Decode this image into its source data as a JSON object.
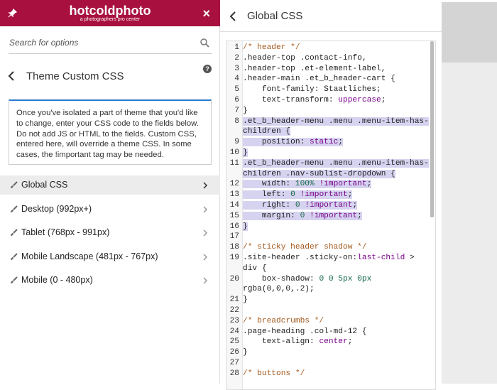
{
  "header": {
    "logo": "hotcoldphoto",
    "tagline": "a photographers pro center",
    "close": "×"
  },
  "search": {
    "placeholder": "Search for options"
  },
  "section": {
    "title": "Theme Custom CSS",
    "help": "?"
  },
  "description": "Once you've isolated a part of theme that you'd like to change, enter your CSS code to the fields below. Do not add JS or HTML to the fields. Custom CSS, entered here, will override a theme CSS. In some cases, the !important tag may be needed.",
  "menu": [
    {
      "label": "Global CSS",
      "active": true
    },
    {
      "label": "Desktop (992px+)",
      "active": false
    },
    {
      "label": "Tablet (768px - 991px)",
      "active": false
    },
    {
      "label": "Mobile Landscape (481px - 767px)",
      "active": false
    },
    {
      "label": "Mobile (0 - 480px)",
      "active": false
    }
  ],
  "editor": {
    "title": "Global CSS",
    "comment_color": "#a55a1e",
    "keyword_color": "#770088",
    "number_color": "#116644",
    "text_color": "#222222",
    "selection_color": "#d6d3f0",
    "lines": [
      {
        "n": 1,
        "selected": false,
        "tokens": [
          {
            "t": "/* header */",
            "k": "comment"
          }
        ]
      },
      {
        "n": 2,
        "selected": false,
        "tokens": [
          {
            "t": ".header-top .contact-info,",
            "k": "text"
          }
        ]
      },
      {
        "n": 3,
        "selected": false,
        "tokens": [
          {
            "t": ".header-top .et-element-label,",
            "k": "text"
          }
        ]
      },
      {
        "n": 4,
        "selected": false,
        "tokens": [
          {
            "t": ".header-main .et_b_header-cart {",
            "k": "text"
          }
        ]
      },
      {
        "n": 5,
        "selected": false,
        "tokens": [
          {
            "t": "    font-family: Staatliches;",
            "k": "text"
          }
        ]
      },
      {
        "n": 6,
        "selected": false,
        "tokens": [
          {
            "t": "    text-transform: ",
            "k": "text"
          },
          {
            "t": "uppercase",
            "k": "keyword"
          },
          {
            "t": ";",
            "k": "text"
          }
        ]
      },
      {
        "n": 7,
        "selected": false,
        "tokens": [
          {
            "t": "}",
            "k": "text"
          }
        ]
      },
      {
        "n": 8,
        "selected": true,
        "tokens": [
          {
            "t": ".et_b_header-menu .menu .menu-item-has-children {",
            "k": "text"
          }
        ]
      },
      {
        "n": 9,
        "selected": true,
        "tokens": [
          {
            "t": "    position: ",
            "k": "text"
          },
          {
            "t": "static",
            "k": "keyword"
          },
          {
            "t": ";",
            "k": "text"
          }
        ]
      },
      {
        "n": 10,
        "selected": true,
        "tokens": [
          {
            "t": "}",
            "k": "text"
          }
        ]
      },
      {
        "n": 11,
        "selected": true,
        "tokens": [
          {
            "t": ".et_b_header-menu .menu .menu-item-has-children .nav-sublist-dropdown {",
            "k": "text"
          }
        ]
      },
      {
        "n": 12,
        "selected": true,
        "tokens": [
          {
            "t": "    width: ",
            "k": "text"
          },
          {
            "t": "100%",
            "k": "number"
          },
          {
            "t": " ",
            "k": "text"
          },
          {
            "t": "!important",
            "k": "keyword"
          },
          {
            "t": ";",
            "k": "text"
          }
        ]
      },
      {
        "n": 13,
        "selected": true,
        "tokens": [
          {
            "t": "    left: ",
            "k": "text"
          },
          {
            "t": "0",
            "k": "number"
          },
          {
            "t": " ",
            "k": "text"
          },
          {
            "t": "!important",
            "k": "keyword"
          },
          {
            "t": ";",
            "k": "text"
          }
        ]
      },
      {
        "n": 14,
        "selected": true,
        "tokens": [
          {
            "t": "    right: ",
            "k": "text"
          },
          {
            "t": "0",
            "k": "number"
          },
          {
            "t": " ",
            "k": "text"
          },
          {
            "t": "!important",
            "k": "keyword"
          },
          {
            "t": ";",
            "k": "text"
          }
        ]
      },
      {
        "n": 15,
        "selected": true,
        "tokens": [
          {
            "t": "    margin: ",
            "k": "text"
          },
          {
            "t": "0",
            "k": "number"
          },
          {
            "t": " ",
            "k": "text"
          },
          {
            "t": "!important",
            "k": "keyword"
          },
          {
            "t": ";",
            "k": "text"
          }
        ]
      },
      {
        "n": 16,
        "selected": true,
        "tokens": [
          {
            "t": "}",
            "k": "text"
          }
        ]
      },
      {
        "n": 17,
        "selected": false,
        "tokens": []
      },
      {
        "n": 18,
        "selected": false,
        "tokens": [
          {
            "t": "/* sticky header shadow */",
            "k": "comment"
          }
        ]
      },
      {
        "n": 19,
        "selected": false,
        "tokens": [
          {
            "t": ".site-header .sticky-on:",
            "k": "text"
          },
          {
            "t": "last-child",
            "k": "keyword"
          },
          {
            "t": " > div {",
            "k": "text"
          }
        ]
      },
      {
        "n": 20,
        "selected": false,
        "tokens": [
          {
            "t": "    box-shadow: ",
            "k": "text"
          },
          {
            "t": "0 0 5px 0px",
            "k": "number"
          },
          {
            "t": " rgba(0,0,0,.2);",
            "k": "text"
          }
        ]
      },
      {
        "n": 21,
        "selected": false,
        "tokens": [
          {
            "t": "}",
            "k": "text"
          }
        ]
      },
      {
        "n": 22,
        "selected": false,
        "tokens": []
      },
      {
        "n": 23,
        "selected": false,
        "tokens": [
          {
            "t": "/* breadcrumbs */",
            "k": "comment"
          }
        ]
      },
      {
        "n": 24,
        "selected": false,
        "tokens": [
          {
            "t": ".page-heading .col-md-12 {",
            "k": "text"
          }
        ]
      },
      {
        "n": 25,
        "selected": false,
        "tokens": [
          {
            "t": "    text-align: ",
            "k": "text"
          },
          {
            "t": "center",
            "k": "keyword"
          },
          {
            "t": ";",
            "k": "text"
          }
        ]
      },
      {
        "n": 26,
        "selected": false,
        "tokens": [
          {
            "t": "}",
            "k": "text"
          }
        ]
      },
      {
        "n": 27,
        "selected": false,
        "tokens": []
      },
      {
        "n": 28,
        "selected": false,
        "tokens": [
          {
            "t": "/* buttons */",
            "k": "comment"
          }
        ]
      }
    ]
  }
}
